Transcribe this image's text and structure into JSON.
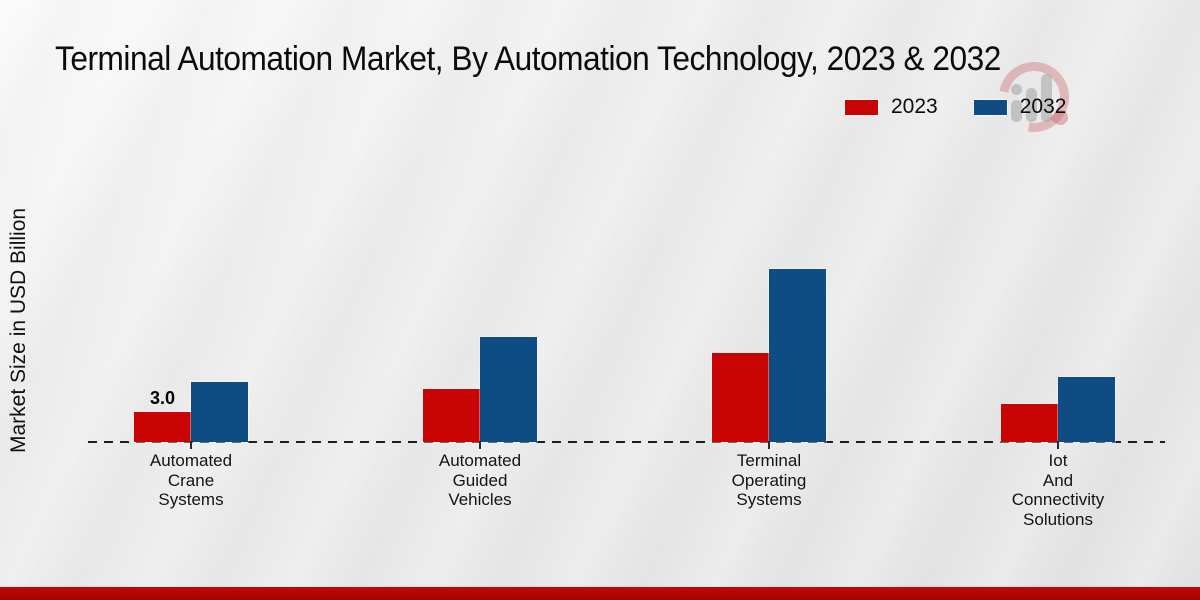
{
  "title": "Terminal Automation Market, By Automation Technology, 2023 & 2032",
  "ylabel": "Market Size in USD Billion",
  "legend": {
    "items": [
      {
        "label": "2023",
        "color": "#c90404"
      },
      {
        "label": "2032",
        "color": "#0f4c83"
      }
    ]
  },
  "watermark_icon": "market-research-future-logo",
  "footer": {
    "accent_color": "#b30404"
  },
  "chart_data": {
    "type": "bar",
    "title": "Terminal Automation Market, By Automation Technology, 2023 & 2032",
    "xlabel": "",
    "ylabel": "Market Size in USD Billion",
    "categories": [
      "Automated\nCrane\nSystems",
      "Automated\nGuided\nVehicles",
      "Terminal\nOperating\nSystems",
      "Iot\nAnd\nConnectivity\nSolutions"
    ],
    "series": [
      {
        "name": "2023",
        "color": "#c90404",
        "values": [
          3.0,
          5.3,
          8.9,
          3.8
        ]
      },
      {
        "name": "2032",
        "color": "#0f4c83",
        "values": [
          6.0,
          10.5,
          17.3,
          6.5
        ]
      }
    ],
    "bar_labels": [
      {
        "series_index": 0,
        "category_index": 0,
        "text": "3.0"
      }
    ],
    "ylim": [
      0,
      20
    ],
    "grid": false,
    "baseline_style": "dashed",
    "legend_position": "upper-right"
  }
}
